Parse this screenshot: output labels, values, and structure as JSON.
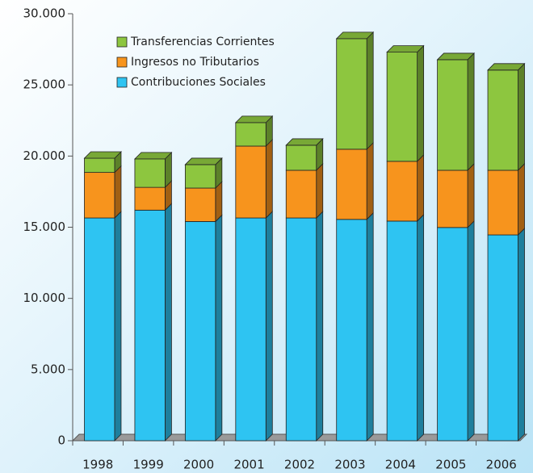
{
  "chart_data": {
    "type": "bar",
    "stacked": true,
    "categories": [
      "1998",
      "1999",
      "2000",
      "2001",
      "2002",
      "2003",
      "2004",
      "2005",
      "2006"
    ],
    "series": [
      {
        "name": "Contribuciones Sociales",
        "color": "#2ec4f2",
        "values": [
          15650,
          16200,
          15400,
          15650,
          15650,
          15550,
          15430,
          14980,
          14460
        ]
      },
      {
        "name": "Ingresos no Tributarios",
        "color": "#f7941d",
        "values": [
          3200,
          1600,
          2350,
          5050,
          3350,
          4930,
          4200,
          4020,
          4540
        ]
      },
      {
        "name": "Transferencias Corrientes",
        "color": "#8dc63f",
        "values": [
          1000,
          2000,
          1650,
          1650,
          1760,
          7770,
          7670,
          7770,
          7040
        ]
      }
    ],
    "ylim": [
      0,
      30000
    ],
    "yticks": [
      0,
      {
        "value": 5000,
        "label": "5.000"
      },
      {
        "value": 10000,
        "label": "10.000"
      },
      {
        "value": 15000,
        "label": "15.000"
      },
      {
        "value": 20000,
        "label": "20.000"
      },
      {
        "value": 25000,
        "label": "25.000"
      },
      {
        "value": 30000,
        "label": "30.000"
      }
    ],
    "grid": false
  }
}
